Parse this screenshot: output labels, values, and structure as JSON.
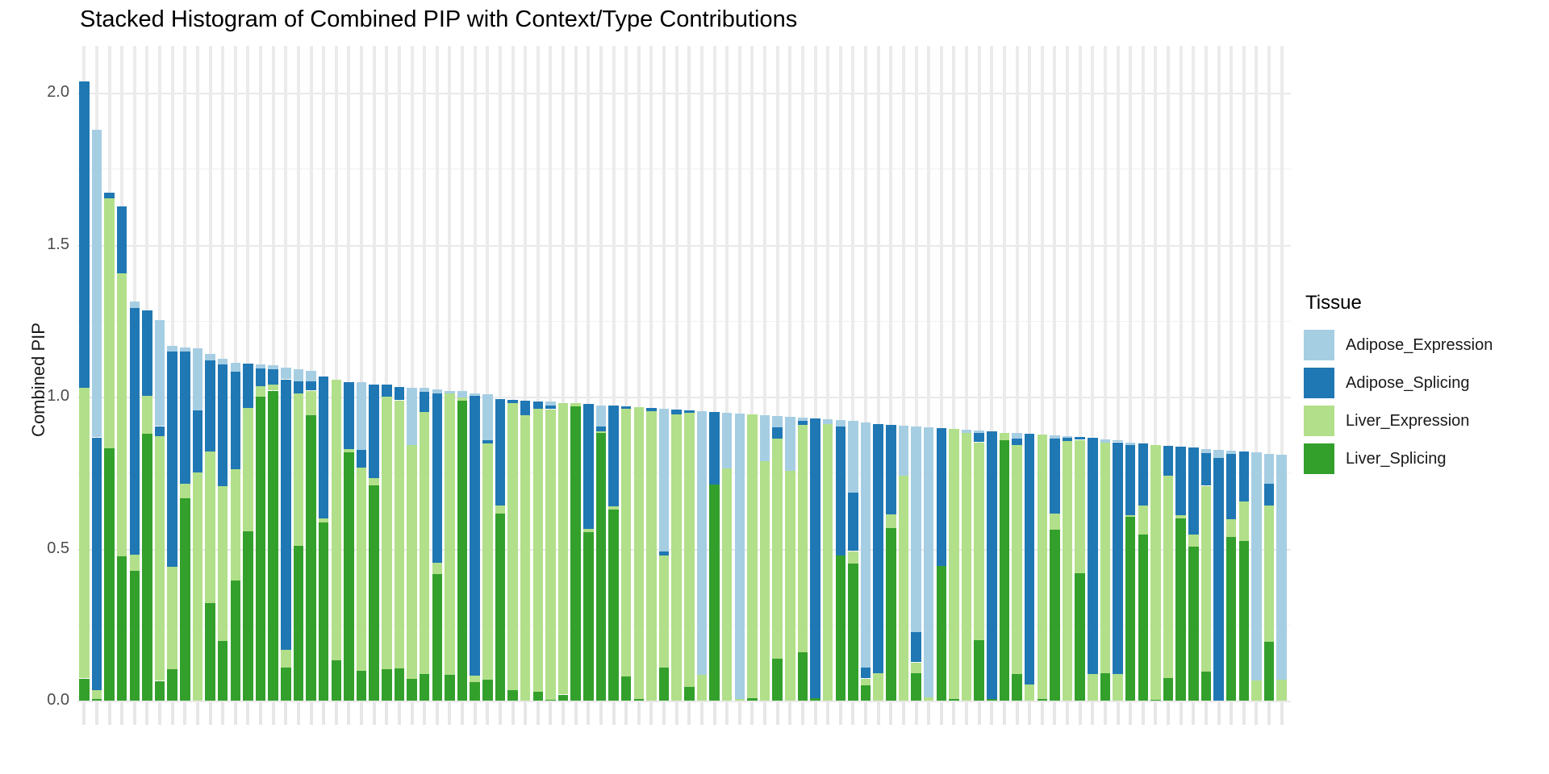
{
  "chart_data": {
    "type": "bar",
    "stacked": true,
    "title": "Stacked Histogram of Combined PIP with Context/Type Contributions",
    "xlabel": "",
    "ylabel": "Combined PIP",
    "y_ticks": [
      "0.0",
      "0.5",
      "1.0",
      "1.5",
      "2.0"
    ],
    "ylim": [
      0,
      2.1
    ],
    "grid": "on",
    "n_bars": 96,
    "bars_sorted": "descending by total Combined PIP",
    "legend_title": "Tissue",
    "legend_position": "right",
    "series_order_top_to_bottom": [
      "Adipose_Expression",
      "Adipose_Splicing",
      "Liver_Expression",
      "Liver_Splicing"
    ],
    "series_colors": {
      "Adipose_Expression": "#A6CEE3",
      "Adipose_Splicing": "#1F78B4",
      "Liver_Expression": "#B2DF8A",
      "Liver_Splicing": "#33A02C"
    },
    "bar_values_order": [
      "Adipose_Expression",
      "Adipose_Splicing",
      "Liver_Expression",
      "Liver_Splicing"
    ],
    "bars": [
      [
        0,
        1.007,
        0.957,
        0.073
      ],
      [
        1.011,
        0.831,
        0.03,
        0.005
      ],
      [
        0,
        0.019,
        0.821,
        0.831
      ],
      [
        0,
        0.222,
        0.931,
        0.474
      ],
      [
        0.021,
        0.81,
        0.055,
        0.426
      ],
      [
        0,
        0.281,
        0.124,
        0.879
      ],
      [
        0.35,
        0.034,
        0.804,
        0.065
      ],
      [
        0.018,
        0.709,
        0.337,
        0.103
      ],
      [
        0.015,
        0.434,
        0.048,
        0.666
      ],
      [
        0.203,
        0.204,
        0.751,
        0
      ],
      [
        0.02,
        0.3,
        0.5,
        0.32
      ],
      [
        0.02,
        0.4,
        0.51,
        0.196
      ],
      [
        0.029,
        0.32,
        0.367,
        0.395
      ],
      [
        0,
        0.147,
        0.406,
        0.556
      ],
      [
        0.013,
        0.059,
        0.034,
        1.0
      ],
      [
        0.013,
        0.05,
        0.02,
        1.02
      ],
      [
        0.039,
        0.89,
        0.059,
        0.108
      ],
      [
        0.04,
        0.04,
        0.5,
        0.51
      ],
      [
        0.035,
        0.03,
        0.08,
        0.94
      ],
      [
        0,
        0.468,
        0.013,
        0.586
      ],
      [
        0,
        0,
        0.923,
        0.134
      ],
      [
        0,
        0.221,
        0.01,
        0.818
      ],
      [
        0.222,
        0.06,
        0.667,
        0.099
      ],
      [
        0,
        0.31,
        0.022,
        0.709
      ],
      [
        0,
        0.039,
        0.898,
        0.103
      ],
      [
        0,
        0.044,
        0.883,
        0.105
      ],
      [
        0.188,
        0,
        0.77,
        0.072
      ],
      [
        0.012,
        0.067,
        0.861,
        0.088
      ],
      [
        0.013,
        0.557,
        0.037,
        0.416
      ],
      [
        0.01,
        0,
        0.925,
        0.085
      ],
      [
        0.02,
        0,
        0.01,
        0.988
      ],
      [
        0.01,
        0.92,
        0.02,
        0.062
      ],
      [
        0.15,
        0.013,
        0.775,
        0.07
      ],
      [
        0,
        0.35,
        0.026,
        0.616
      ],
      [
        0,
        0.01,
        0.946,
        0.034
      ],
      [
        0,
        0.049,
        0.939,
        0
      ],
      [
        0,
        0.025,
        0.93,
        0.03
      ],
      [
        0.012,
        0.012,
        0.955,
        0.004
      ],
      [
        0,
        0,
        0.96,
        0.02
      ],
      [
        0,
        0,
        0.01,
        0.968
      ],
      [
        0,
        0.41,
        0.01,
        0.555
      ],
      [
        0.069,
        0.017,
        0.006,
        0.88
      ],
      [
        0,
        0.331,
        0.01,
        0.629
      ],
      [
        0,
        0.007,
        0.88,
        0.08
      ],
      [
        0,
        0,
        0.96,
        0.005
      ],
      [
        0,
        0.01,
        0.952,
        0
      ],
      [
        0.47,
        0.013,
        0.367,
        0.11
      ],
      [
        0,
        0.015,
        0.942,
        0
      ],
      [
        0,
        0.009,
        0.901,
        0.045
      ],
      [
        0.868,
        0,
        0.084,
        0
      ],
      [
        0,
        0.238,
        0,
        0.712
      ],
      [
        0.184,
        0,
        0.763,
        0
      ],
      [
        0.94,
        0,
        0.005,
        0
      ],
      [
        0,
        0,
        0.935,
        0.007
      ],
      [
        0.152,
        0,
        0.788,
        0
      ],
      [
        0.037,
        0.039,
        0.724,
        0.137
      ],
      [
        0.18,
        0,
        0.755,
        0
      ],
      [
        0.01,
        0.012,
        0.748,
        0.16
      ],
      [
        0,
        0.92,
        0,
        0.008
      ],
      [
        0.015,
        0,
        0.91,
        0
      ],
      [
        0.019,
        0.425,
        0,
        0.478
      ],
      [
        0.236,
        0.192,
        0.04,
        0.452
      ],
      [
        0.807,
        0.035,
        0.022,
        0.051
      ],
      [
        0,
        0.82,
        0.09,
        0
      ],
      [
        0,
        0.296,
        0.045,
        0.567
      ],
      [
        0.166,
        0,
        0.739,
        0
      ],
      [
        0.676,
        0.1,
        0.035,
        0.091
      ],
      [
        0.89,
        0,
        0.01,
        0
      ],
      [
        0,
        0.455,
        0,
        0.442
      ],
      [
        0,
        0,
        0.89,
        0.005
      ],
      [
        0.012,
        0,
        0.88,
        0
      ],
      [
        0.008,
        0.03,
        0.65,
        0.2
      ],
      [
        0,
        0.88,
        0,
        0.005
      ],
      [
        0,
        0,
        0.026,
        0.856
      ],
      [
        0.018,
        0.022,
        0.752,
        0.088
      ],
      [
        0,
        0.823,
        0.054,
        0
      ],
      [
        0,
        0,
        0.87,
        0.005
      ],
      [
        0.01,
        0.247,
        0.053,
        0.562
      ],
      [
        0.005,
        0.01,
        0.855,
        0
      ],
      [
        0,
        0.009,
        0.44,
        0.418
      ],
      [
        0,
        0.776,
        0.088,
        0
      ],
      [
        0.01,
        0,
        0.76,
        0.09
      ],
      [
        0.007,
        0.762,
        0.088,
        0
      ],
      [
        0.009,
        0.23,
        0.006,
        0.605
      ],
      [
        0,
        0.204,
        0.095,
        0.547
      ],
      [
        0,
        0,
        0.84,
        0.002
      ],
      [
        0,
        0.099,
        0.664,
        0.075
      ],
      [
        0,
        0.225,
        0.01,
        0.6
      ],
      [
        0,
        0.285,
        0.04,
        0.507
      ],
      [
        0.013,
        0.108,
        0.61,
        0.097
      ],
      [
        0.026,
        0.799,
        0,
        0
      ],
      [
        0.01,
        0.215,
        0.059,
        0.538
      ],
      [
        0,
        0.164,
        0.13,
        0.525
      ],
      [
        0.749,
        0,
        0.067,
        0
      ],
      [
        0.1,
        0.07,
        0.45,
        0.193
      ],
      [
        0.74,
        0,
        0.07,
        0
      ]
    ]
  }
}
